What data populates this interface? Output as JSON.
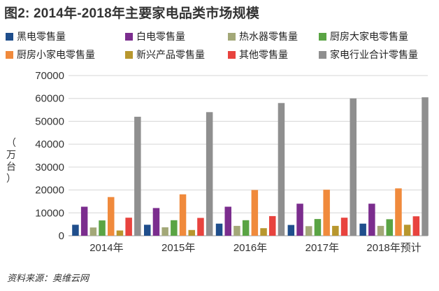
{
  "title": "图2: 2014年-2018年主要家电品类市场规模",
  "source": "资料来源：奥维云网",
  "chart_data": {
    "type": "bar",
    "title": "图2: 2014年-2018年主要家电品类市场规模",
    "ylabel": "（万台）",
    "xlabel": "",
    "categories": [
      "2014年",
      "2015年",
      "2016年",
      "2017年",
      "2018年预计"
    ],
    "ylim": [
      0,
      70000
    ],
    "yticks": [
      0,
      10000,
      20000,
      30000,
      40000,
      50000,
      60000,
      70000
    ],
    "grid": true,
    "legend_position": "top",
    "series": [
      {
        "name": "黑电零售量",
        "color": "#1f4e8c",
        "values": [
          4800,
          4800,
          5300,
          4700,
          5300
        ]
      },
      {
        "name": "白电零售量",
        "color": "#7b2d8e",
        "values": [
          12700,
          12100,
          12700,
          14000,
          14000
        ]
      },
      {
        "name": "热水器零售量",
        "color": "#a3a878",
        "values": [
          3600,
          3700,
          4300,
          4200,
          4300
        ]
      },
      {
        "name": "厨房大家电零售量",
        "color": "#5aa444",
        "values": [
          6700,
          6800,
          6800,
          7300,
          7200
        ]
      },
      {
        "name": "厨房小家电零售量",
        "color": "#f08a3c",
        "values": [
          16900,
          18100,
          20000,
          20100,
          20700
        ]
      },
      {
        "name": "新兴产品零售量",
        "color": "#b8972e",
        "values": [
          2300,
          2500,
          3300,
          4300,
          4800
        ]
      },
      {
        "name": "其他零售量",
        "color": "#e8433e",
        "values": [
          7900,
          7800,
          8600,
          7900,
          8500
        ]
      },
      {
        "name": "家电行业合计零售量",
        "color": "#8f8f8f",
        "values": [
          52000,
          54000,
          58000,
          60000,
          60500
        ]
      }
    ]
  }
}
